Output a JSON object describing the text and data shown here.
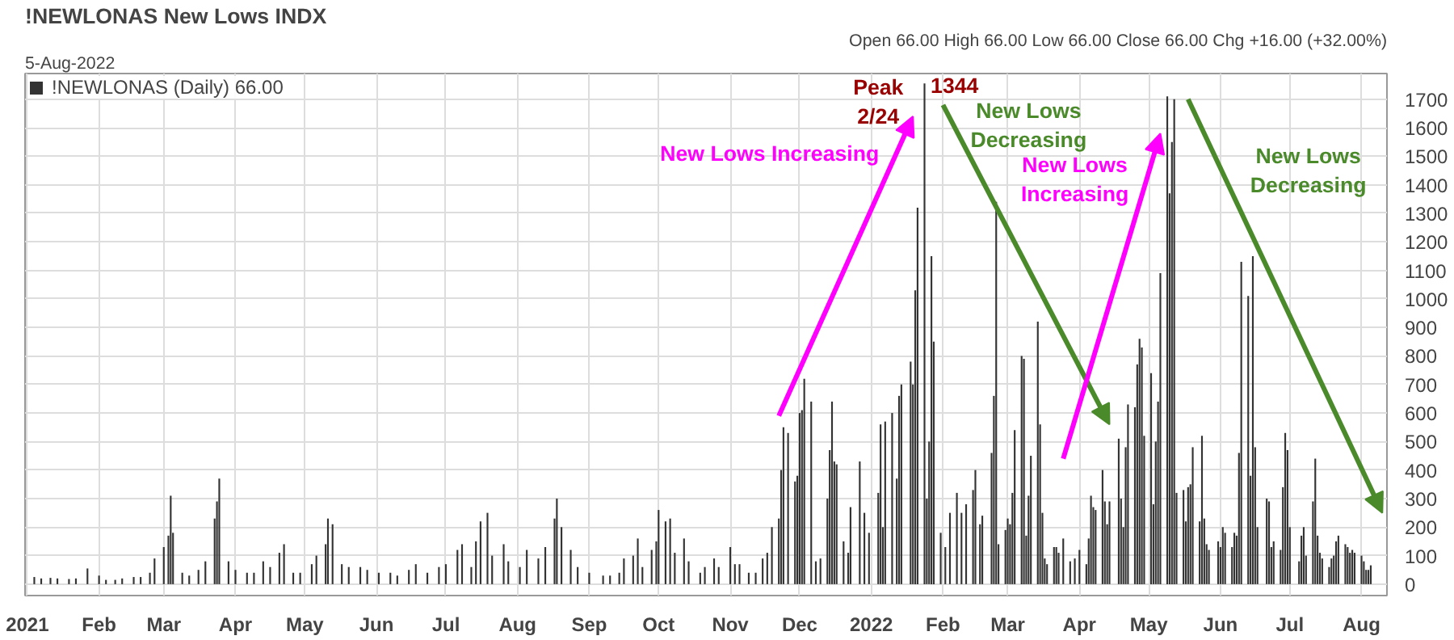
{
  "chart_data": {
    "type": "bar",
    "title": "!NEWLONAS New Lows INDX",
    "subtitle": "5-Aug-2022",
    "x": [
      "2021-01-04",
      "2021-01-07",
      "2021-01-11",
      "2021-01-14",
      "2021-01-19",
      "2021-01-22",
      "2021-01-27",
      "2021-02-01",
      "2021-02-04",
      "2021-02-08",
      "2021-02-11",
      "2021-02-16",
      "2021-02-19",
      "2021-02-23",
      "2021-02-25",
      "2021-03-01",
      "2021-03-03",
      "2021-03-04",
      "2021-03-05",
      "2021-03-09",
      "2021-03-12",
      "2021-03-16",
      "2021-03-19",
      "2021-03-23",
      "2021-03-24",
      "2021-03-25",
      "2021-03-29",
      "2021-04-01",
      "2021-04-06",
      "2021-04-09",
      "2021-04-13",
      "2021-04-16",
      "2021-04-20",
      "2021-04-22",
      "2021-04-26",
      "2021-04-29",
      "2021-05-04",
      "2021-05-06",
      "2021-05-10",
      "2021-05-11",
      "2021-05-13",
      "2021-05-17",
      "2021-05-20",
      "2021-05-25",
      "2021-05-28",
      "2021-06-02",
      "2021-06-07",
      "2021-06-10",
      "2021-06-15",
      "2021-06-18",
      "2021-06-23",
      "2021-06-28",
      "2021-07-01",
      "2021-07-06",
      "2021-07-08",
      "2021-07-12",
      "2021-07-14",
      "2021-07-16",
      "2021-07-19",
      "2021-07-21",
      "2021-07-26",
      "2021-07-28",
      "2021-08-02",
      "2021-08-05",
      "2021-08-10",
      "2021-08-13",
      "2021-08-17",
      "2021-08-18",
      "2021-08-20",
      "2021-08-24",
      "2021-08-27",
      "2021-09-01",
      "2021-09-07",
      "2021-09-10",
      "2021-09-14",
      "2021-09-16",
      "2021-09-20",
      "2021-09-22",
      "2021-09-24",
      "2021-09-28",
      "2021-09-30",
      "2021-10-01",
      "2021-10-04",
      "2021-10-06",
      "2021-10-08",
      "2021-10-12",
      "2021-10-14",
      "2021-10-19",
      "2021-10-21",
      "2021-10-25",
      "2021-10-27",
      "2021-11-01",
      "2021-11-03",
      "2021-11-05",
      "2021-11-09",
      "2021-11-12",
      "2021-11-15",
      "2021-11-17",
      "2021-11-19",
      "2021-11-22",
      "2021-11-23",
      "2021-11-24",
      "2021-11-26",
      "2021-11-29",
      "2021-11-30",
      "2021-12-01",
      "2021-12-02",
      "2021-12-03",
      "2021-12-06",
      "2021-12-08",
      "2021-12-10",
      "2021-12-13",
      "2021-12-14",
      "2021-12-15",
      "2021-12-16",
      "2021-12-17",
      "2021-12-20",
      "2021-12-22",
      "2021-12-23",
      "2021-12-27",
      "2021-12-29",
      "2021-12-31",
      "2022-01-04",
      "2022-01-05",
      "2022-01-06",
      "2022-01-07",
      "2022-01-10",
      "2022-01-12",
      "2022-01-13",
      "2022-01-14",
      "2022-01-18",
      "2022-01-19",
      "2022-01-20",
      "2022-01-21",
      "2022-01-24",
      "2022-01-25",
      "2022-01-26",
      "2022-01-27",
      "2022-01-28",
      "2022-01-31",
      "2022-02-02",
      "2022-02-04",
      "2022-02-07",
      "2022-02-09",
      "2022-02-11",
      "2022-02-14",
      "2022-02-15",
      "2022-02-17",
      "2022-02-18",
      "2022-02-22",
      "2022-02-23",
      "2022-02-24",
      "2022-02-25",
      "2022-02-28",
      "2022-03-01",
      "2022-03-02",
      "2022-03-03",
      "2022-03-04",
      "2022-03-07",
      "2022-03-08",
      "2022-03-09",
      "2022-03-10",
      "2022-03-11",
      "2022-03-14",
      "2022-03-15",
      "2022-03-16",
      "2022-03-17",
      "2022-03-18",
      "2022-03-21",
      "2022-03-22",
      "2022-03-23",
      "2022-03-25",
      "2022-03-28",
      "2022-03-30",
      "2022-04-01",
      "2022-04-04",
      "2022-04-05",
      "2022-04-06",
      "2022-04-07",
      "2022-04-08",
      "2022-04-11",
      "2022-04-12",
      "2022-04-13",
      "2022-04-14",
      "2022-04-18",
      "2022-04-19",
      "2022-04-20",
      "2022-04-21",
      "2022-04-22",
      "2022-04-25",
      "2022-04-26",
      "2022-04-27",
      "2022-04-28",
      "2022-04-29",
      "2022-05-02",
      "2022-05-03",
      "2022-05-04",
      "2022-05-05",
      "2022-05-06",
      "2022-05-09",
      "2022-05-10",
      "2022-05-11",
      "2022-05-12",
      "2022-05-13",
      "2022-05-16",
      "2022-05-17",
      "2022-05-18",
      "2022-05-19",
      "2022-05-20",
      "2022-05-23",
      "2022-05-24",
      "2022-05-25",
      "2022-05-26",
      "2022-05-27",
      "2022-05-31",
      "2022-06-01",
      "2022-06-02",
      "2022-06-03",
      "2022-06-06",
      "2022-06-07",
      "2022-06-08",
      "2022-06-09",
      "2022-06-10",
      "2022-06-13",
      "2022-06-14",
      "2022-06-15",
      "2022-06-16",
      "2022-06-17",
      "2022-06-21",
      "2022-06-22",
      "2022-06-23",
      "2022-06-24",
      "2022-06-27",
      "2022-06-28",
      "2022-06-29",
      "2022-06-30",
      "2022-07-01",
      "2022-07-05",
      "2022-07-06",
      "2022-07-07",
      "2022-07-08",
      "2022-07-11",
      "2022-07-12",
      "2022-07-13",
      "2022-07-14",
      "2022-07-15",
      "2022-07-18",
      "2022-07-19",
      "2022-07-20",
      "2022-07-21",
      "2022-07-22",
      "2022-07-25",
      "2022-07-26",
      "2022-07-27",
      "2022-07-28",
      "2022-07-29",
      "2022-08-01",
      "2022-08-02",
      "2022-08-03",
      "2022-08-04",
      "2022-08-05"
    ],
    "series": [
      {
        "name": "!NEWLONAS (Daily) 66.00",
        "color": "#333333",
        "values": [
          25,
          20,
          22,
          20,
          18,
          20,
          55,
          30,
          15,
          15,
          20,
          25,
          25,
          40,
          90,
          130,
          170,
          310,
          180,
          40,
          30,
          50,
          80,
          230,
          290,
          370,
          80,
          50,
          40,
          40,
          80,
          60,
          110,
          140,
          40,
          40,
          70,
          100,
          140,
          230,
          210,
          70,
          60,
          60,
          50,
          40,
          40,
          30,
          50,
          70,
          40,
          60,
          70,
          120,
          140,
          60,
          150,
          220,
          250,
          100,
          140,
          80,
          60,
          120,
          90,
          130,
          230,
          300,
          200,
          120,
          60,
          40,
          30,
          30,
          40,
          90,
          100,
          160,
          60,
          120,
          150,
          260,
          220,
          230,
          110,
          160,
          80,
          40,
          60,
          90,
          60,
          130,
          70,
          70,
          40,
          40,
          90,
          110,
          200,
          230,
          400,
          550,
          530,
          360,
          380,
          600,
          610,
          720,
          640,
          80,
          90,
          300,
          470,
          640,
          430,
          420,
          150,
          110,
          270,
          430,
          250,
          180,
          320,
          560,
          200,
          570,
          600,
          370,
          660,
          700,
          780,
          700,
          1030,
          1320,
          1755,
          300,
          500,
          1150,
          850,
          180,
          130,
          250,
          320,
          250,
          280,
          330,
          400,
          210,
          240,
          460,
          660,
          1340,
          140,
          190,
          230,
          210,
          320,
          540,
          800,
          790,
          170,
          310,
          450,
          920,
          560,
          250,
          90,
          70,
          130,
          130,
          110,
          160,
          80,
          90,
          120,
          70,
          160,
          310,
          270,
          260,
          400,
          290,
          210,
          290,
          510,
          300,
          200,
          480,
          630,
          620,
          770,
          860,
          830,
          520,
          740,
          280,
          500,
          640,
          1090,
          1710,
          1370,
          1550,
          1700,
          320,
          330,
          220,
          340,
          350,
          480,
          220,
          520,
          230,
          140,
          120,
          150,
          130,
          200,
          180,
          130,
          180,
          170,
          460,
          1130,
          1010,
          380,
          1150,
          480,
          200,
          300,
          290,
          130,
          150,
          120,
          340,
          530,
          470,
          200,
          80,
          170,
          200,
          100,
          290,
          440,
          170,
          110,
          90,
          60,
          90,
          100,
          150,
          170,
          140,
          130,
          110,
          120,
          110,
          100,
          80,
          50,
          50,
          66
        ]
      }
    ],
    "xlim": [
      "2020-12-31",
      "2022-08-12"
    ],
    "xticks": [
      {
        "value": "2021-01-01",
        "label": "2021"
      },
      {
        "value": "2021-02-01",
        "label": "Feb"
      },
      {
        "value": "2021-03-01",
        "label": "Mar"
      },
      {
        "value": "2021-04-01",
        "label": "Apr"
      },
      {
        "value": "2021-05-01",
        "label": "May"
      },
      {
        "value": "2021-06-01",
        "label": "Jun"
      },
      {
        "value": "2021-07-01",
        "label": "Jul"
      },
      {
        "value": "2021-08-01",
        "label": "Aug"
      },
      {
        "value": "2021-09-01",
        "label": "Sep"
      },
      {
        "value": "2021-10-01",
        "label": "Oct"
      },
      {
        "value": "2021-11-01",
        "label": "Nov"
      },
      {
        "value": "2021-12-01",
        "label": "Dec"
      },
      {
        "value": "2022-01-01",
        "label": "2022"
      },
      {
        "value": "2022-02-01",
        "label": "Feb"
      },
      {
        "value": "2022-03-01",
        "label": "Mar"
      },
      {
        "value": "2022-04-01",
        "label": "Apr"
      },
      {
        "value": "2022-05-01",
        "label": "May"
      },
      {
        "value": "2022-06-01",
        "label": "Jun"
      },
      {
        "value": "2022-07-01",
        "label": "Jul"
      },
      {
        "value": "2022-08-01",
        "label": "Aug"
      }
    ],
    "ylim": [
      -40,
      1790
    ],
    "yticks": [
      0,
      100,
      200,
      300,
      400,
      500,
      600,
      700,
      800,
      900,
      1000,
      1100,
      1200,
      1300,
      1400,
      1500,
      1600,
      1700
    ],
    "grid": true,
    "legend": "top left",
    "annotations": [
      "Open 66.00 High 66.00 Low 66.00 Close 66.00 Chg +16.00 (+32.00%)",
      "Peak\n2/24",
      "1344",
      "New Lows Increasing",
      "New Lows\nDecreasing",
      "New Lows\nIncreasing",
      "New Lows\nDecreasing"
    ]
  }
}
